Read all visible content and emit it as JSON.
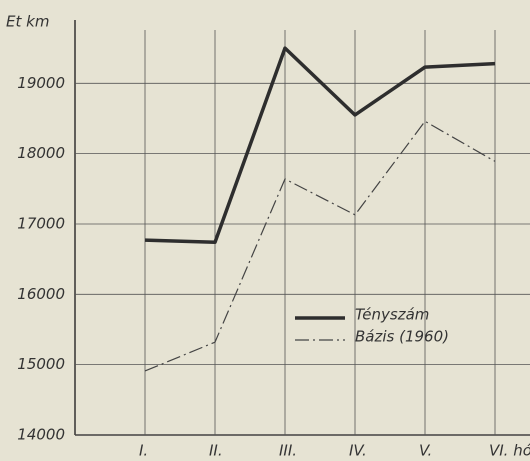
{
  "chart_data": {
    "type": "line",
    "y_label": "Et km",
    "categories": [
      "I.",
      "II.",
      "III.",
      "IV.",
      "V.",
      "VI. hó"
    ],
    "series": [
      {
        "name": "Tényszám",
        "color": "#2e2e2e",
        "width": 3.5,
        "dash": "none",
        "values": [
          16770,
          16740,
          19500,
          18550,
          19230,
          19280
        ]
      },
      {
        "name": "Bázis (1960)",
        "color": "#444444",
        "width": 1.2,
        "dash": "14 4 2 4",
        "values": [
          14910,
          15320,
          17640,
          17130,
          18460,
          17890
        ]
      }
    ],
    "ylim": [
      14000,
      19900
    ],
    "yticks": [
      14000,
      15000,
      16000,
      17000,
      18000,
      19000
    ],
    "grid": true
  }
}
